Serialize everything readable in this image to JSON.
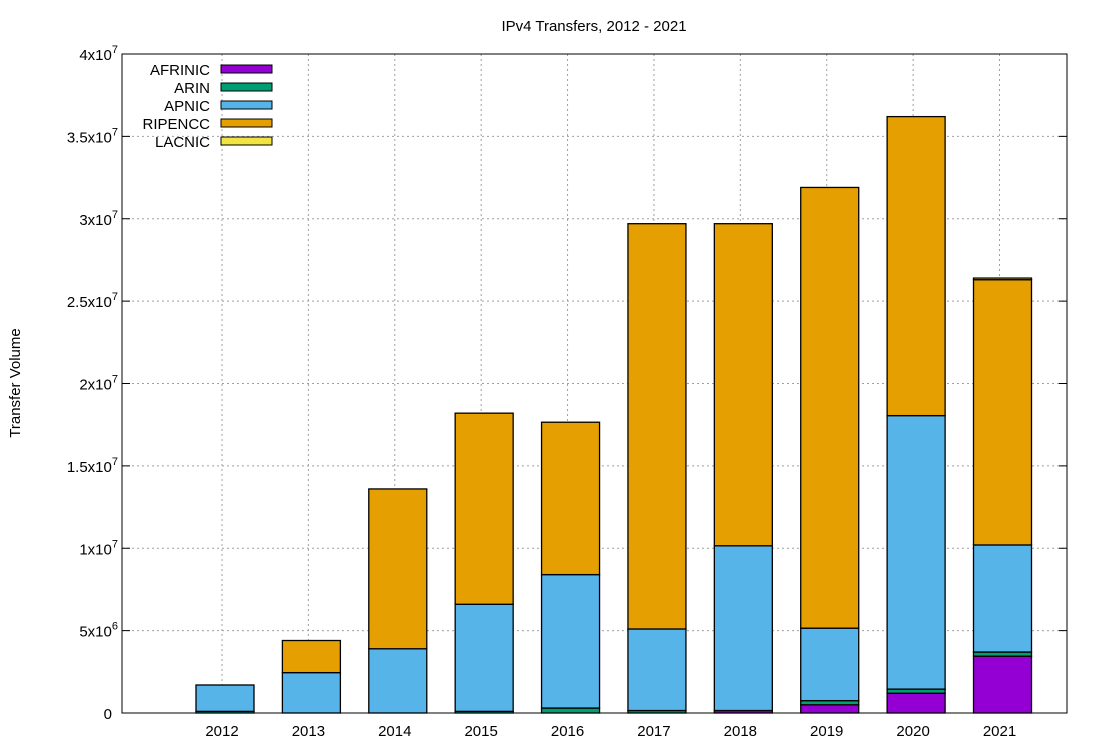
{
  "chart_data": {
    "type": "bar",
    "stacked": true,
    "title": "IPv4 Transfers, 2012 - 2021",
    "xlabel": "",
    "ylabel": "Transfer Volume",
    "ylim": [
      0,
      40000000
    ],
    "yticks": [
      {
        "value": 0,
        "base": "0",
        "exp": ""
      },
      {
        "value": 5000000,
        "base": "5x10",
        "exp": "6"
      },
      {
        "value": 10000000,
        "base": "1x10",
        "exp": "7"
      },
      {
        "value": 15000000,
        "base": "1.5x10",
        "exp": "7"
      },
      {
        "value": 20000000,
        "base": "2x10",
        "exp": "7"
      },
      {
        "value": 25000000,
        "base": "2.5x10",
        "exp": "7"
      },
      {
        "value": 30000000,
        "base": "3x10",
        "exp": "7"
      },
      {
        "value": 35000000,
        "base": "3.5x10",
        "exp": "7"
      },
      {
        "value": 40000000,
        "base": "4x10",
        "exp": "7"
      }
    ],
    "grid": true,
    "legend_position": "top-left",
    "categories": [
      "2012",
      "2013",
      "2014",
      "2015",
      "2016",
      "2017",
      "2018",
      "2019",
      "2020",
      "2021"
    ],
    "series": [
      {
        "name": "AFRINIC",
        "color": "#9400d3",
        "values": [
          0,
          0,
          0,
          0,
          0,
          0,
          150000,
          500000,
          1200000,
          3450000
        ]
      },
      {
        "name": "ARIN",
        "color": "#009e73",
        "values": [
          100000,
          0,
          0,
          100000,
          300000,
          150000,
          0,
          250000,
          250000,
          250000
        ]
      },
      {
        "name": "APNIC",
        "color": "#56b4e9",
        "values": [
          1600000,
          2450000,
          3900000,
          6500000,
          8100000,
          4950000,
          10000000,
          4400000,
          16600000,
          6500000
        ]
      },
      {
        "name": "RIPENCC",
        "color": "#e69f00",
        "values": [
          0,
          1950000,
          9700000,
          11600000,
          9250000,
          24600000,
          19550000,
          26750000,
          18150000,
          16100000
        ]
      },
      {
        "name": "LACNIC",
        "color": "#f0e442",
        "values": [
          0,
          0,
          0,
          0,
          0,
          0,
          0,
          0,
          0,
          100000
        ]
      }
    ]
  }
}
